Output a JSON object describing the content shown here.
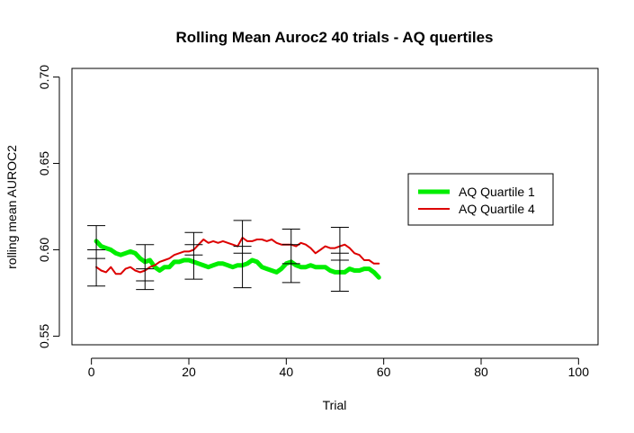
{
  "chart_data": {
    "type": "line",
    "title": "Rolling Mean Auroc2 40 trials - AQ quertiles",
    "xlabel": "Trial",
    "ylabel": "rolling mean AUROC2",
    "xlim": [
      -4,
      104
    ],
    "ylim": [
      0.545,
      0.705
    ],
    "xticks": [
      0,
      20,
      40,
      60,
      80,
      100
    ],
    "yticks": [
      0.55,
      0.6,
      0.65,
      0.7
    ],
    "xtick_labels": [
      "0",
      "20",
      "40",
      "60",
      "80",
      "100"
    ],
    "ytick_labels": [
      "0.55",
      "0.60",
      "0.65",
      "0.70"
    ],
    "grid": false,
    "legend_position": "right",
    "series": [
      {
        "name": "AQ Quartile 1",
        "color": "#00ee00",
        "x": [
          1,
          2,
          3,
          4,
          5,
          6,
          7,
          8,
          9,
          10,
          11,
          12,
          13,
          14,
          15,
          16,
          17,
          18,
          19,
          20,
          21,
          22,
          23,
          24,
          25,
          26,
          27,
          28,
          29,
          30,
          31,
          32,
          33,
          34,
          35,
          36,
          37,
          38,
          39,
          40,
          41,
          42,
          43,
          44,
          45,
          46,
          47,
          48,
          49,
          50,
          51,
          52,
          53,
          54,
          55,
          56,
          57,
          58,
          59
        ],
        "y": [
          0.605,
          0.602,
          0.601,
          0.6,
          0.598,
          0.597,
          0.598,
          0.599,
          0.598,
          0.595,
          0.593,
          0.594,
          0.59,
          0.588,
          0.59,
          0.59,
          0.593,
          0.593,
          0.594,
          0.594,
          0.593,
          0.592,
          0.591,
          0.59,
          0.591,
          0.592,
          0.592,
          0.591,
          0.59,
          0.591,
          0.591,
          0.592,
          0.594,
          0.593,
          0.59,
          0.589,
          0.588,
          0.587,
          0.589,
          0.592,
          0.593,
          0.591,
          0.59,
          0.59,
          0.591,
          0.59,
          0.59,
          0.59,
          0.588,
          0.587,
          0.587,
          0.587,
          0.589,
          0.588,
          0.588,
          0.589,
          0.589,
          0.587,
          0.584
        ]
      },
      {
        "name": "AQ Quartile 4",
        "color": "#dd0000",
        "x": [
          1,
          2,
          3,
          4,
          5,
          6,
          7,
          8,
          9,
          10,
          11,
          12,
          13,
          14,
          15,
          16,
          17,
          18,
          19,
          20,
          21,
          22,
          23,
          24,
          25,
          26,
          27,
          28,
          29,
          30,
          31,
          32,
          33,
          34,
          35,
          36,
          37,
          38,
          39,
          40,
          41,
          42,
          43,
          44,
          45,
          46,
          47,
          48,
          49,
          50,
          51,
          52,
          53,
          54,
          55,
          56,
          57,
          58,
          59
        ],
        "y": [
          0.59,
          0.588,
          0.587,
          0.59,
          0.586,
          0.586,
          0.589,
          0.59,
          0.588,
          0.587,
          0.588,
          0.59,
          0.591,
          0.593,
          0.594,
          0.595,
          0.597,
          0.598,
          0.599,
          0.599,
          0.6,
          0.603,
          0.606,
          0.604,
          0.605,
          0.604,
          0.605,
          0.604,
          0.603,
          0.602,
          0.607,
          0.605,
          0.605,
          0.606,
          0.606,
          0.605,
          0.606,
          0.604,
          0.603,
          0.603,
          0.603,
          0.602,
          0.604,
          0.603,
          0.601,
          0.598,
          0.6,
          0.602,
          0.601,
          0.601,
          0.602,
          0.603,
          0.601,
          0.598,
          0.597,
          0.594,
          0.594,
          0.592,
          0.592
        ]
      }
    ],
    "error_bars": [
      {
        "x": 1,
        "low": 0.579,
        "mid": 0.6,
        "high": 0.614,
        "inner": 0.595
      },
      {
        "x": 11,
        "low": 0.577,
        "mid": 0.589,
        "high": 0.603,
        "inner": 0.582
      },
      {
        "x": 21,
        "low": 0.583,
        "mid": 0.597,
        "high": 0.61,
        "inner": 0.603
      },
      {
        "x": 31,
        "low": 0.578,
        "mid": 0.598,
        "high": 0.617,
        "inner": 0.602
      },
      {
        "x": 41,
        "low": 0.581,
        "mid": 0.592,
        "high": 0.612,
        "inner": 0.603
      },
      {
        "x": 51,
        "low": 0.576,
        "mid": 0.594,
        "high": 0.613,
        "inner": 0.598
      }
    ]
  }
}
